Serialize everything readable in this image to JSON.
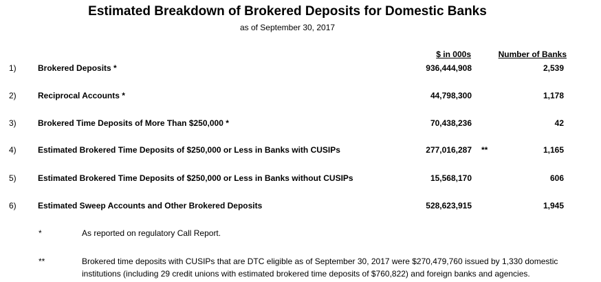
{
  "header": {
    "title": "Estimated Breakdown of Brokered Deposits for Domestic Banks",
    "subtitle": "as of September 30, 2017"
  },
  "columns": {
    "amount": "$ in 000s",
    "banks": "Number of Banks"
  },
  "rows": [
    {
      "num": "1)",
      "label": "Brokered Deposits *",
      "amount": "936,444,908",
      "mark": "",
      "banks": "2,539"
    },
    {
      "num": "2)",
      "label": "Reciprocal Accounts *",
      "amount": "44,798,300",
      "mark": "",
      "banks": "1,178"
    },
    {
      "num": "3)",
      "label": "Brokered Time Deposits of More Than $250,000 *",
      "amount": "70,438,236",
      "mark": "",
      "banks": "42"
    },
    {
      "num": "4)",
      "label": "Estimated Brokered Time Deposits of $250,000 or Less in Banks with CUSIPs",
      "amount": "277,016,287",
      "mark": "**",
      "banks": "1,165"
    },
    {
      "num": "5)",
      "label": "Estimated Brokered Time Deposits of $250,000 or Less in Banks without CUSIPs",
      "amount": "15,568,170",
      "mark": "",
      "banks": "606"
    },
    {
      "num": "6)",
      "label": "Estimated Sweep Accounts and Other Brokered Deposits",
      "amount": "528,623,915",
      "mark": "",
      "banks": "1,945"
    }
  ],
  "notes": [
    {
      "sym": "*",
      "text": "As reported on regulatory Call Report."
    },
    {
      "sym": "**",
      "text": "Brokered time deposits with CUSIPs that are DTC eligible as of September 30, 2017 were $270,479,760 issued by 1,330 domestic institutions (including 29 credit unions with estimated brokered time deposits of $760,822) and foreign banks and agencies."
    }
  ]
}
